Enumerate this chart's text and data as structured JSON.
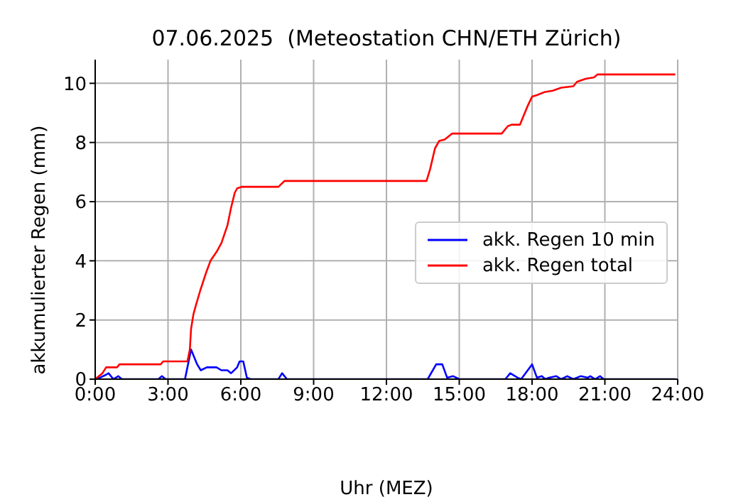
{
  "chart_data": {
    "type": "line",
    "title": "07.06.2025  (Meteostation CHN/ETH Zürich)",
    "xlabel": "Uhr (MEZ)",
    "ylabel": "akkumulierter Regen (mm)",
    "xlim": [
      0,
      24
    ],
    "xticks": [
      {
        "value": 0,
        "label": "0:00"
      },
      {
        "value": 3,
        "label": "3:00"
      },
      {
        "value": 6,
        "label": "6:00"
      },
      {
        "value": 9,
        "label": "9:00"
      },
      {
        "value": 12,
        "label": "12:00"
      },
      {
        "value": 15,
        "label": "15:00"
      },
      {
        "value": 18,
        "label": "18:00"
      },
      {
        "value": 21,
        "label": "21:00"
      },
      {
        "value": 24,
        "label": "24:00"
      }
    ],
    "ylim": [
      0,
      10.8
    ],
    "yticks": [
      0,
      2,
      4,
      6,
      8,
      10
    ],
    "grid": true,
    "legend": "right",
    "marker": "none",
    "line_style": "solid",
    "series": [
      {
        "name": "akk. Regen 10 min",
        "color": "#0000ff",
        "x": [
          0,
          0.2,
          0.45,
          0.55,
          0.75,
          0.95,
          1.1,
          2.6,
          2.75,
          2.9,
          3.7,
          3.95,
          4.2,
          4.35,
          4.6,
          5.0,
          5.2,
          5.45,
          5.6,
          5.85,
          5.95,
          6.1,
          6.25,
          6.4,
          7.55,
          7.7,
          7.9,
          13.7,
          14.05,
          14.3,
          14.5,
          14.75,
          15.0,
          16.9,
          17.1,
          17.4,
          17.55,
          18.0,
          18.2,
          18.4,
          18.55,
          18.7,
          19.0,
          19.2,
          19.45,
          19.7,
          20.0,
          20.3,
          20.4,
          20.6,
          20.8,
          20.95,
          23.9
        ],
        "values": [
          0,
          0.05,
          0.15,
          0.2,
          0,
          0.1,
          0,
          0,
          0.1,
          0,
          0,
          1.0,
          0.5,
          0.3,
          0.4,
          0.4,
          0.3,
          0.3,
          0.2,
          0.4,
          0.6,
          0.6,
          0.05,
          0,
          0,
          0.2,
          0,
          0,
          0.5,
          0.5,
          0.05,
          0.1,
          0,
          0,
          0.2,
          0.05,
          0,
          0.5,
          0.05,
          0.1,
          0,
          0.05,
          0.1,
          0,
          0.1,
          0,
          0.1,
          0.05,
          0.1,
          0,
          0.1,
          0,
          0
        ]
      },
      {
        "name": "akk. Regen total",
        "color": "#ff0000",
        "x": [
          0,
          0.3,
          0.45,
          0.9,
          1.0,
          2.7,
          2.8,
          3.8,
          3.9,
          3.95,
          4.05,
          4.15,
          4.33,
          4.57,
          4.75,
          5.0,
          5.2,
          5.45,
          5.6,
          5.75,
          5.85,
          6.03,
          7.55,
          7.8,
          13.65,
          13.8,
          14.0,
          14.17,
          14.4,
          14.7,
          16.75,
          17.0,
          17.15,
          17.5,
          17.6,
          17.8,
          18.0,
          18.2,
          18.5,
          18.85,
          19.2,
          19.7,
          19.85,
          20.2,
          20.55,
          20.7,
          23.9
        ],
        "values": [
          0,
          0.2,
          0.4,
          0.4,
          0.5,
          0.5,
          0.6,
          0.6,
          1.0,
          1.7,
          2.2,
          2.5,
          3.0,
          3.6,
          4.0,
          4.3,
          4.6,
          5.2,
          5.8,
          6.3,
          6.45,
          6.5,
          6.5,
          6.7,
          6.7,
          7.1,
          7.8,
          8.05,
          8.1,
          8.3,
          8.3,
          8.55,
          8.6,
          8.6,
          8.8,
          9.2,
          9.55,
          9.6,
          9.7,
          9.75,
          9.85,
          9.9,
          10.05,
          10.15,
          10.2,
          10.3,
          10.3
        ]
      }
    ]
  }
}
